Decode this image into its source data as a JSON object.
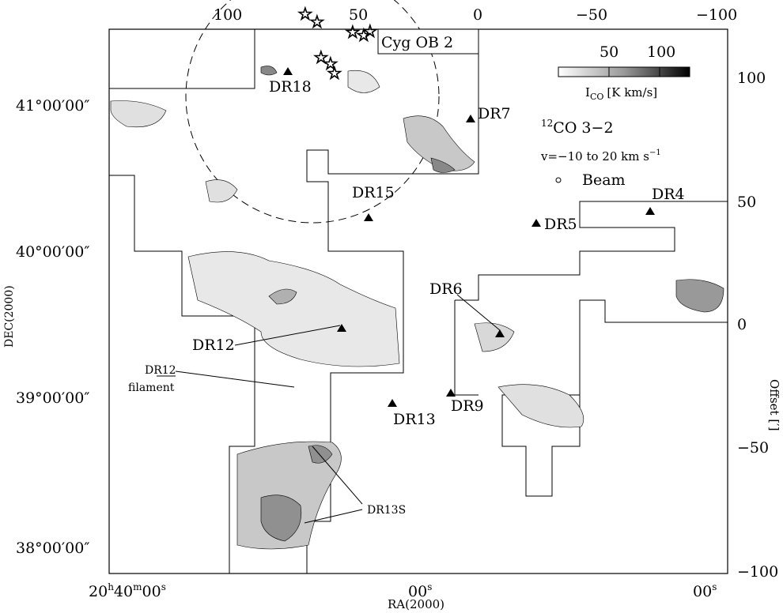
{
  "map": {
    "title": "12CO 3-2",
    "title_superscript": "12",
    "title_main": "CO 3−2",
    "velocity_range": "v=−10 to 20 km s",
    "velocity_superscript": "−1",
    "beam_label": "Beam",
    "cluster_label": "Cyg OB 2",
    "colorbar": {
      "label": "I",
      "label_subscript": "CO",
      "label_units": "[K km/s]",
      "ticks": [
        "50",
        "100"
      ],
      "scale_min": 0,
      "scale_max": 130,
      "tick_values": [
        50,
        100
      ]
    },
    "axes": {
      "xlabel": "RA(2000)",
      "ylabel": "DEC(2000)",
      "right_label": "Offset [′]",
      "bottom_ticks": [
        {
          "hour": "20",
          "h": "h",
          "min": "40",
          "m": "m",
          "sec": "00",
          "s": "s"
        },
        {
          "sec": "00",
          "s": "s"
        },
        {
          "sec": "00",
          "s": "s"
        }
      ],
      "left_ticks": [
        "41°00′00″",
        "40°00′00″",
        "39°00′00″",
        "38°00′00″"
      ],
      "top_ticks": [
        "100",
        "50",
        "0",
        "−50",
        "−100"
      ],
      "right_ticks": [
        "100",
        "50",
        "0",
        "−50",
        "−100"
      ]
    },
    "sources": [
      {
        "name": "DR18"
      },
      {
        "name": "DR7"
      },
      {
        "name": "DR15"
      },
      {
        "name": "DR4"
      },
      {
        "name": "DR5"
      },
      {
        "name": "DR6"
      },
      {
        "name": "DR12"
      },
      {
        "name": "DR13"
      },
      {
        "name": "DR9"
      }
    ],
    "annotations": {
      "filament_line1": "DR12",
      "filament_line2": "filament",
      "dr13s": "DR13S"
    },
    "colors": {
      "line": "#000000",
      "background": "#ffffff",
      "fill_light": "#e0e0e0",
      "fill_mid": "#b8b8b8",
      "fill_dark": "#888888"
    }
  }
}
